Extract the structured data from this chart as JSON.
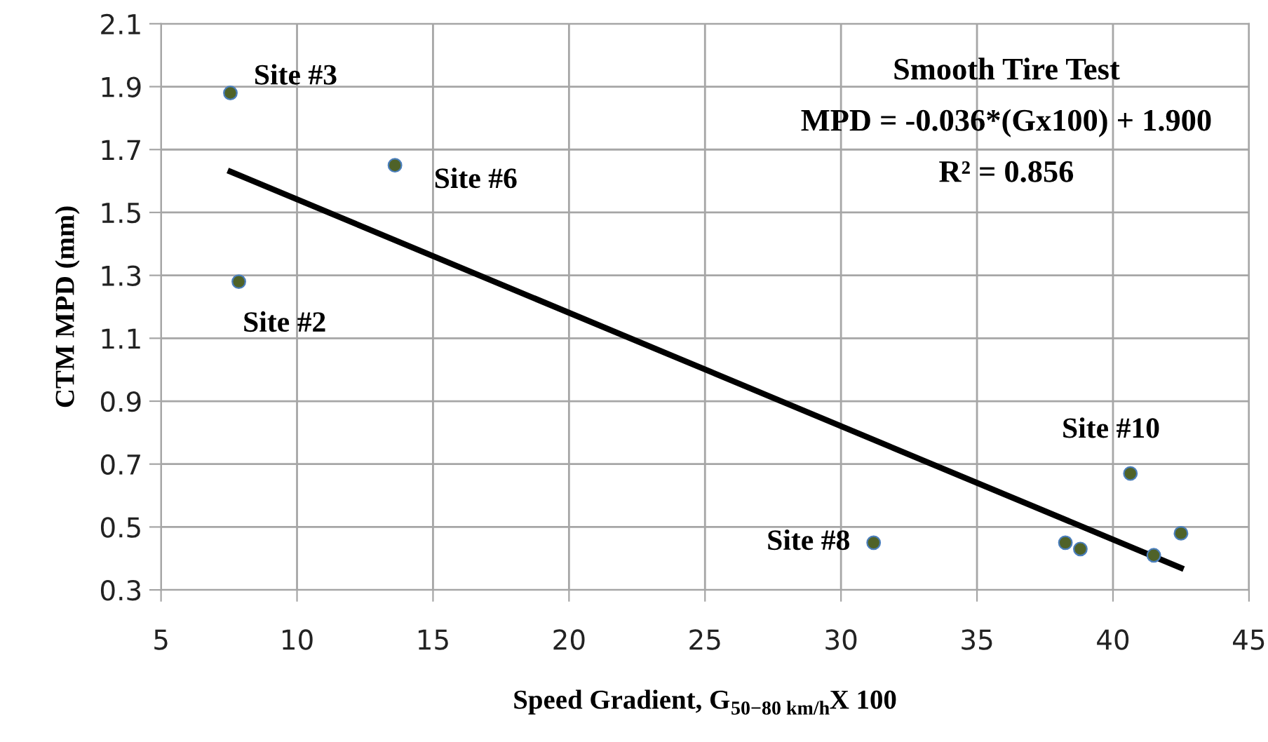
{
  "chart_data": {
    "type": "scatter",
    "xlabel": "Speed Gradient, G$_{50−80 km/h}$X 100",
    "ylabel": "CTM MPD (mm)",
    "xlim": [
      5,
      45
    ],
    "xticks": [
      5,
      10,
      15,
      20,
      25,
      30,
      35,
      40,
      45
    ],
    "ylim": [
      0.3,
      2.1
    ],
    "yticks": [
      {
        "value": 0.3,
        "label": "0.3"
      },
      {
        "value": 0.5,
        "label": "0.5"
      },
      {
        "value": 0.7,
        "label": "0.7"
      },
      {
        "value": 0.9,
        "label": "0.9"
      },
      {
        "value": 1.1,
        "label": "1.1"
      },
      {
        "value": 1.3,
        "label": "1.3"
      },
      {
        "value": 1.5,
        "label": "1.5"
      },
      {
        "value": 1.7,
        "label": "1.7"
      },
      {
        "value": 1.9,
        "label": "1.9"
      },
      {
        "value": 2.1,
        "label": "2.1"
      }
    ],
    "grid": true,
    "marker": "circle",
    "series": [
      {
        "color": "#4f6228",
        "x": [
          7.55,
          7.86,
          13.6,
          31.2,
          38.25,
          38.8,
          40.64,
          41.5,
          42.5
        ],
        "values": [
          1.88,
          1.28,
          1.65,
          0.45,
          0.45,
          0.43,
          0.67,
          0.41,
          0.48
        ]
      },
      {
        "type": "line",
        "color": "#000000",
        "marker": "none",
        "x": [
          7.55,
          42.5
        ],
        "values": [
          1.63,
          0.37
        ]
      }
    ],
    "annotations": [
      {
        "text": "Site #3",
        "x": 7.55,
        "y": 1.88
      },
      {
        "text": "Site #6",
        "x": 13.6,
        "y": 1.65
      },
      {
        "text": "Site #2",
        "x": 7.86,
        "y": 1.28
      },
      {
        "text": "Site #8",
        "x": 31.2,
        "y": 0.45
      },
      {
        "text": "Site #10",
        "x": 40.64,
        "y": 0.67
      },
      "Smooth Tire Test",
      "MPD = -0.036*(Gx100) + 1.900",
      "R² = 0.856"
    ]
  }
}
